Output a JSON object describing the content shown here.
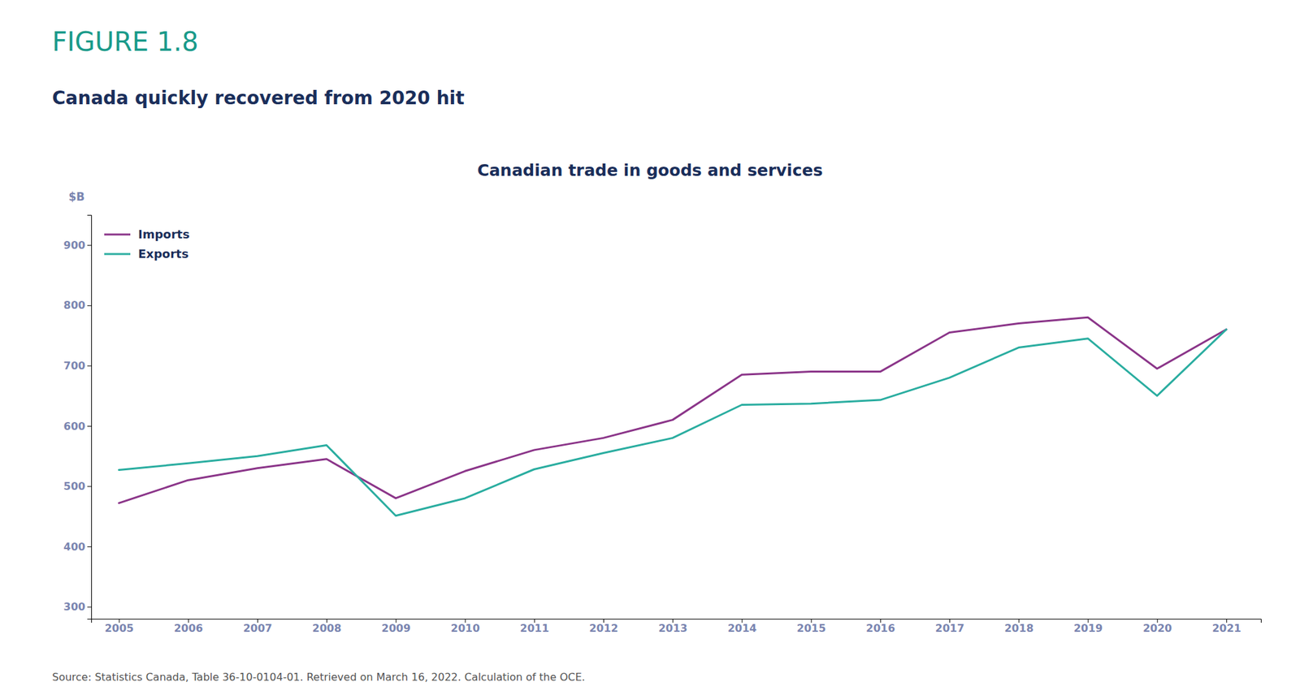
{
  "chart_data": {
    "type": "line",
    "title": "Canadian trade in goods and services",
    "subtitle": "Canada quickly recovered from 2020 hit",
    "annotations": [
      "FIGURE 1.8",
      "Source: Statistics Canada, Table 36-10-0104-01. Retrieved on March 16, 2022. Calculation of the OCE."
    ],
    "ylabel": "$B",
    "x": [
      2005,
      2006,
      2007,
      2008,
      2009,
      2010,
      2011,
      2012,
      2013,
      2014,
      2015,
      2016,
      2017,
      2018,
      2019,
      2020,
      2021
    ],
    "series": [
      {
        "name": "Imports",
        "color": "#8b3589",
        "values": [
          472,
          510,
          530,
          545,
          480,
          525,
          560,
          580,
          610,
          685,
          690,
          690,
          755,
          770,
          780,
          695,
          760
        ]
      },
      {
        "name": "Exports",
        "color": "#2aada0",
        "values": [
          527,
          538,
          550,
          568,
          451,
          480,
          528,
          555,
          580,
          635,
          637,
          643,
          680,
          730,
          745,
          650,
          760
        ]
      }
    ],
    "xlim": [
      2004.6,
      2021.5
    ],
    "xticks": [
      2005,
      2006,
      2007,
      2008,
      2009,
      2010,
      2011,
      2012,
      2013,
      2014,
      2015,
      2016,
      2017,
      2018,
      2019,
      2020,
      2021
    ],
    "ylim": [
      280,
      950
    ],
    "yticks": [
      300,
      400,
      500,
      600,
      700,
      800,
      900
    ],
    "grid": false,
    "legend": "upper left"
  }
}
